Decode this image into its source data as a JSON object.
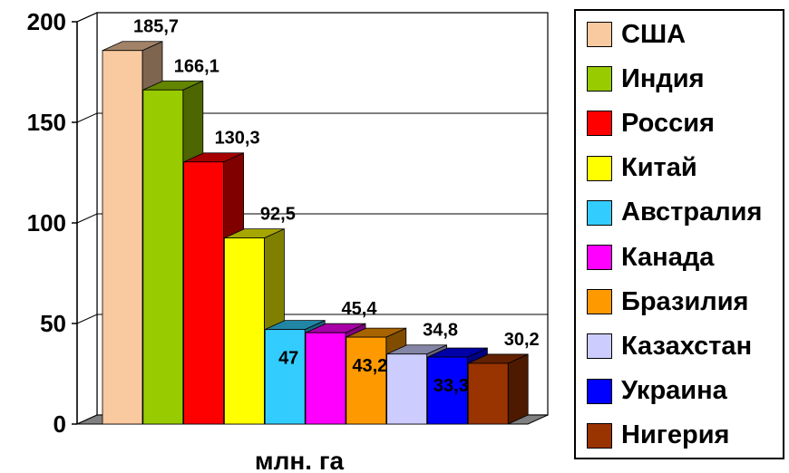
{
  "chart_data": {
    "type": "bar",
    "categories": [
      "США",
      "Индия",
      "Россия",
      "Китай",
      "Австралия",
      "Канада",
      "Бразилия",
      "Казахстан",
      "Украина",
      "Нигерия"
    ],
    "series": [
      {
        "values": [
          185.7,
          166.1,
          130.3,
          92.5,
          47,
          45.4,
          43.2,
          34.8,
          33.3,
          30.2
        ]
      }
    ],
    "data_labels": [
      "185,7",
      "166,1",
      "130,3",
      "92,5",
      "47",
      "45,4",
      "43,2",
      "34,8",
      "33,3",
      "30,2"
    ],
    "colors": [
      "#f9c9a0",
      "#99cc00",
      "#ff0000",
      "#ffff00",
      "#33ccff",
      "#ff00ff",
      "#ff9900",
      "#ccccff",
      "#0000ff",
      "#993300"
    ],
    "yticks": [
      "0",
      "50",
      "100",
      "150",
      "200"
    ],
    "ylim": [
      0,
      200
    ],
    "xlabel": "млн. га",
    "ylabel": "",
    "title": "",
    "grid": true,
    "style": "3d-columns",
    "legend_position": "right"
  }
}
